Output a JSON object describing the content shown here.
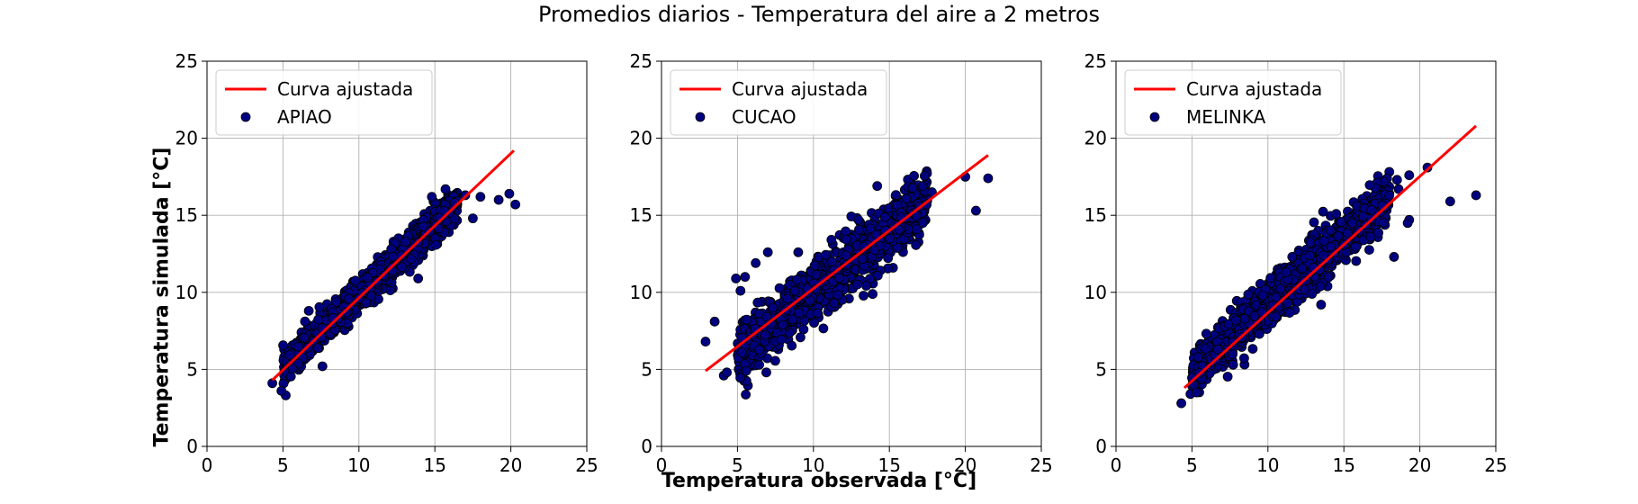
{
  "figure": {
    "suptitle": "Promedios diarios - Temperatura del aire a 2 metros",
    "xlabel": "Temperatura observada [°C]",
    "ylabel": "Temperatura simulada [°C]"
  },
  "colors": {
    "points_fill": "#00007f",
    "points_edge": "#000000",
    "fit_line": "#ff0000",
    "grid": "#b0b0b0"
  },
  "legend": {
    "fit_label": "Curva ajustada",
    "placement": "upper-left"
  },
  "chart_data": [
    {
      "type": "scatter",
      "station": "APIAO",
      "xlim": [
        0,
        25
      ],
      "ylim": [
        0,
        25
      ],
      "xticks": [
        0,
        5,
        10,
        15,
        20,
        25
      ],
      "yticks": [
        0,
        5,
        10,
        15,
        20,
        25
      ],
      "grid": true,
      "fit": {
        "x": [
          4.3,
          20.2
        ],
        "y": [
          4.3,
          19.2
        ]
      },
      "outliers": [
        [
          4.3,
          4.1
        ],
        [
          4.9,
          3.6
        ],
        [
          20.3,
          15.7
        ],
        [
          19.9,
          16.4
        ],
        [
          19.2,
          16.0
        ],
        [
          18.0,
          16.2
        ],
        [
          17.0,
          16.3
        ],
        [
          16.3,
          15.8
        ],
        [
          15.6,
          15.3
        ],
        [
          14.8,
          16.2
        ],
        [
          17.5,
          14.8
        ],
        [
          13.9,
          10.9
        ],
        [
          10.0,
          9.6
        ],
        [
          6.7,
          8.8
        ],
        [
          7.6,
          5.2
        ]
      ],
      "cloud": {
        "x_range": [
          5.0,
          16.5
        ],
        "slope": 0.94,
        "intercept": 0.35,
        "spread": 0.55,
        "count": 1100
      }
    },
    {
      "type": "scatter",
      "station": "CUCAO",
      "xlim": [
        0,
        25
      ],
      "ylim": [
        0,
        25
      ],
      "xticks": [
        0,
        5,
        10,
        15,
        20,
        25
      ],
      "yticks": [
        0,
        5,
        10,
        15,
        20,
        25
      ],
      "grid": true,
      "fit": {
        "x": [
          2.9,
          21.5
        ],
        "y": [
          4.9,
          18.9
        ]
      },
      "outliers": [
        [
          2.9,
          6.8
        ],
        [
          3.5,
          8.1
        ],
        [
          4.1,
          4.6
        ],
        [
          4.3,
          4.8
        ],
        [
          4.9,
          10.9
        ],
        [
          5.3,
          6.1
        ],
        [
          6.9,
          4.8
        ],
        [
          20.0,
          17.5
        ],
        [
          21.5,
          17.4
        ],
        [
          20.7,
          15.3
        ],
        [
          17.8,
          16.5
        ],
        [
          17.2,
          14.5
        ],
        [
          14.2,
          16.9
        ],
        [
          5.5,
          11.0
        ],
        [
          5.2,
          10.1
        ],
        [
          6.2,
          11.9
        ],
        [
          7.0,
          12.6
        ],
        [
          9.0,
          12.6
        ]
      ],
      "cloud": {
        "x_range": [
          5.0,
          17.5
        ],
        "slope": 0.78,
        "intercept": 2.2,
        "spread": 0.95,
        "count": 1200
      }
    },
    {
      "type": "scatter",
      "station": "MELINKA",
      "xlim": [
        0,
        25
      ],
      "ylim": [
        0,
        25
      ],
      "xticks": [
        0,
        5,
        10,
        15,
        20,
        25
      ],
      "yticks": [
        0,
        5,
        10,
        15,
        20,
        25
      ],
      "grid": true,
      "fit": {
        "x": [
          4.5,
          23.7
        ],
        "y": [
          3.8,
          20.8
        ]
      },
      "outliers": [
        [
          4.3,
          2.8
        ],
        [
          4.9,
          3.4
        ],
        [
          5.3,
          3.5
        ],
        [
          22.0,
          15.9
        ],
        [
          23.7,
          16.3
        ],
        [
          20.5,
          18.1
        ],
        [
          19.3,
          17.6
        ],
        [
          19.3,
          14.7
        ],
        [
          19.2,
          14.5
        ],
        [
          18.5,
          17.3
        ],
        [
          18.6,
          16.7
        ],
        [
          18.3,
          12.3
        ],
        [
          12.9,
          9.9
        ],
        [
          13.5,
          9.2
        ],
        [
          11.2,
          11.3
        ],
        [
          11.6,
          12.3
        ]
      ],
      "cloud": {
        "x_range": [
          5.0,
          18.0
        ],
        "slope": 0.88,
        "intercept": 0.4,
        "spread": 0.75,
        "count": 1300
      }
    }
  ]
}
